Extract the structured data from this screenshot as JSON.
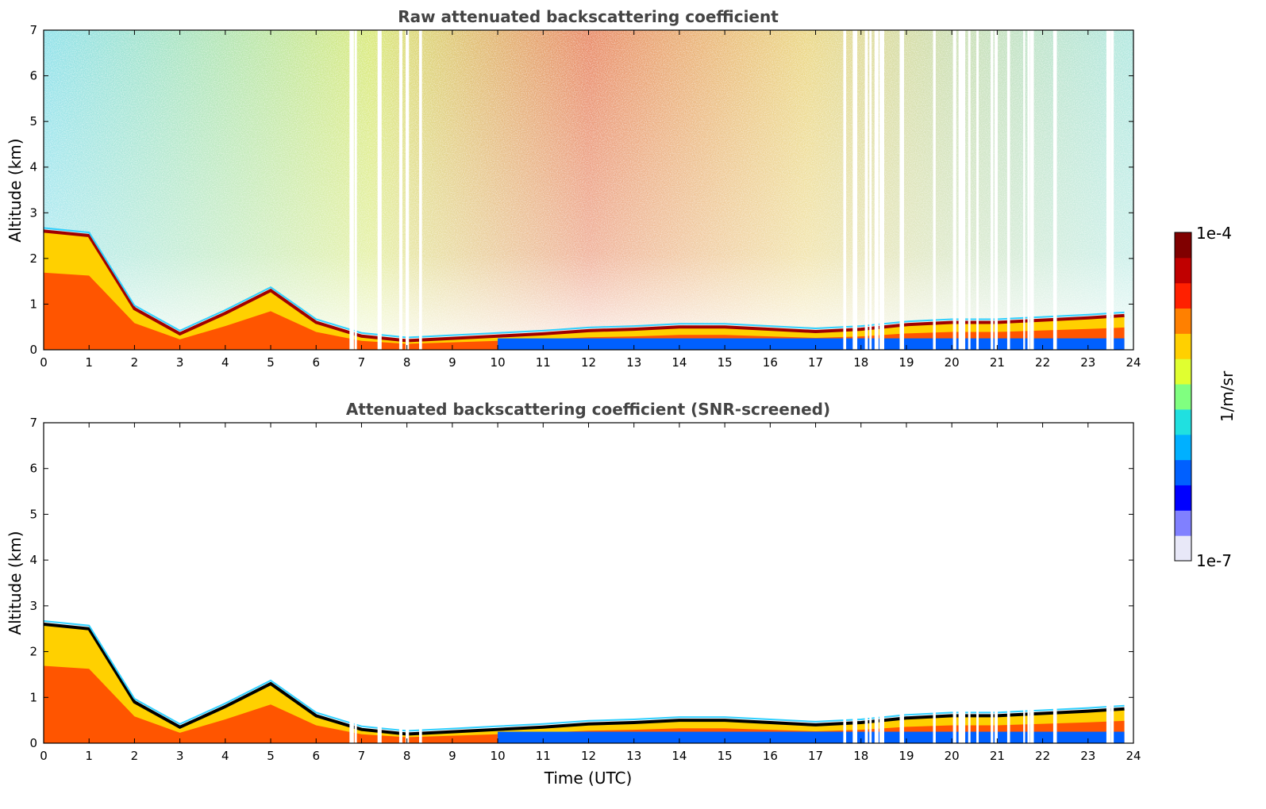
{
  "chart_data": [
    {
      "type": "heatmap",
      "title": "Raw attenuated backscattering coefficient",
      "xlabel": "",
      "ylabel": "Altitude (km)",
      "xlim": [
        0,
        24
      ],
      "ylim": [
        0,
        7
      ],
      "xticks": [
        0,
        1,
        2,
        3,
        4,
        5,
        6,
        7,
        8,
        9,
        10,
        11,
        12,
        13,
        14,
        15,
        16,
        17,
        18,
        19,
        20,
        21,
        22,
        23,
        24
      ],
      "yticks": [
        0,
        1,
        2,
        3,
        4,
        5,
        6,
        7
      ],
      "series": [
        {
          "name": "",
          "x": [
            0,
            1,
            2,
            3,
            4,
            5,
            6,
            7,
            8,
            9,
            10,
            11,
            12,
            13,
            14,
            15,
            16,
            17,
            18,
            19,
            20,
            21,
            22,
            23,
            23.8
          ],
          "y": [
            2.6,
            2.5,
            0.9,
            0.35,
            0.8,
            1.3,
            0.6,
            0.3,
            0.2,
            0.25,
            0.3,
            0.35,
            0.42,
            0.45,
            0.5,
            0.5,
            0.45,
            0.4,
            0.45,
            0.55,
            0.6,
            0.6,
            0.65,
            0.7,
            0.75
          ]
        }
      ]
    },
    {
      "type": "heatmap",
      "title": "Attenuated backscattering coefficient (SNR-screened)",
      "xlabel": "Time (UTC)",
      "ylabel": "Altitude (km)",
      "xlim": [
        0,
        24
      ],
      "ylim": [
        0,
        7
      ],
      "xticks": [
        0,
        1,
        2,
        3,
        4,
        5,
        6,
        7,
        8,
        9,
        10,
        11,
        12,
        13,
        14,
        15,
        16,
        17,
        18,
        19,
        20,
        21,
        22,
        23,
        24
      ],
      "yticks": [
        0,
        1,
        2,
        3,
        4,
        5,
        6,
        7
      ],
      "series": [
        {
          "name": "",
          "x": [
            0,
            1,
            2,
            3,
            4,
            5,
            6,
            7,
            8,
            9,
            10,
            11,
            12,
            13,
            14,
            15,
            16,
            17,
            18,
            19,
            20,
            21,
            22,
            23,
            23.8
          ],
          "y": [
            2.6,
            2.5,
            0.9,
            0.35,
            0.8,
            1.3,
            0.6,
            0.3,
            0.2,
            0.25,
            0.3,
            0.35,
            0.42,
            0.45,
            0.5,
            0.5,
            0.45,
            0.4,
            0.45,
            0.55,
            0.6,
            0.6,
            0.65,
            0.7,
            0.75
          ]
        }
      ]
    }
  ],
  "colorbar": {
    "label": "1/m/sr",
    "min_label": "1e-7",
    "max_label": "1e-4",
    "scale": "log",
    "colors": [
      "#e8e8f8",
      "#8080ff",
      "#0000ff",
      "#0060ff",
      "#00b0ff",
      "#20e0e0",
      "#80ff80",
      "#e0ff30",
      "#ffd000",
      "#ff8000",
      "#ff2000",
      "#c00000",
      "#800000"
    ]
  }
}
